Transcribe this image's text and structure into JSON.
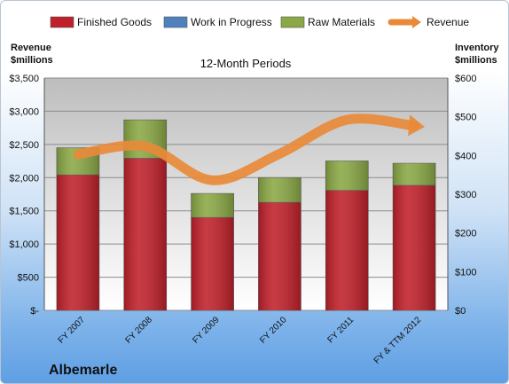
{
  "chart_data": {
    "type": "bar",
    "stacked": true,
    "title": "12-Month Periods",
    "company": "Albemarle",
    "categories": [
      "FY 2007",
      "FY 2008",
      "FY 2009",
      "FY 2010",
      "FY 2011",
      "FY & TTM 2012"
    ],
    "series": [
      {
        "name": "Finished Goods",
        "color": "#c0202a",
        "axis": "right",
        "values": [
          350,
          393,
          240,
          279,
          310,
          323
        ]
      },
      {
        "name": "Work in Progress",
        "color": "#4f81bd",
        "axis": "right",
        "values": [
          0,
          0,
          0,
          0,
          0,
          0
        ]
      },
      {
        "name": "Raw Materials",
        "color": "#8aa845",
        "axis": "right",
        "values": [
          70,
          99,
          62,
          64,
          76,
          57
        ]
      },
      {
        "name": "Revenue",
        "color": "#e88a3a",
        "type": "line",
        "axis": "left",
        "values": [
          2350,
          2470,
          1960,
          2360,
          2870,
          2780
        ]
      }
    ],
    "left_axis": {
      "label_lines": [
        "Revenue",
        "$millions"
      ],
      "ylim": [
        0,
        3500
      ],
      "ticks": [
        0,
        500,
        1000,
        1500,
        2000,
        2500,
        3000,
        3500
      ],
      "tick_labels": [
        "$-",
        "$500",
        "$1,000",
        "$1,500",
        "$2,000",
        "$2,500",
        "$3,000",
        "$3,500"
      ]
    },
    "right_axis": {
      "label_lines": [
        "Inventory",
        "$millions"
      ],
      "ylim": [
        0,
        600
      ],
      "ticks": [
        0,
        100,
        200,
        300,
        400,
        500,
        600
      ],
      "tick_labels": [
        "$0",
        "$100",
        "$200",
        "$300",
        "$400",
        "$500",
        "$600"
      ]
    },
    "grid": true,
    "legend": "top"
  }
}
